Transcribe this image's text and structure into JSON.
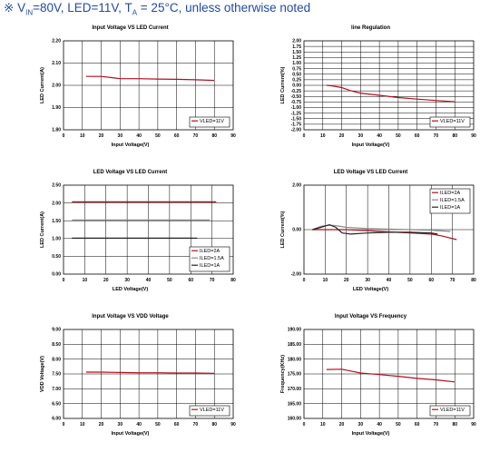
{
  "header": {
    "symbol": "※",
    "v_prefix": "V",
    "v_sub": "IN",
    "v_rest": "=80V, LED=11V, T",
    "t_sub": "A",
    "t_rest": " = 25°C, unless otherwise noted"
  },
  "chart_data": [
    {
      "type": "line",
      "title": "Input Voltage VS LED Current",
      "xlabel": "Input Voltage(V)",
      "ylabel": "LED Current(A)",
      "xlim": [
        0,
        90
      ],
      "ylim": [
        1.8,
        2.2
      ],
      "xticks": [
        0,
        10,
        20,
        30,
        40,
        50,
        60,
        70,
        80,
        90
      ],
      "yticks": [
        1.8,
        1.9,
        2.0,
        2.1,
        2.2
      ],
      "ydecimals": 2,
      "grid": true,
      "legend": "bottom-right",
      "series": [
        {
          "name": "VLED=11V",
          "color": "#b01020",
          "style": "solid",
          "x": [
            12,
            15,
            20,
            25,
            30,
            40,
            50,
            60,
            70,
            80
          ],
          "y": [
            2.04,
            2.04,
            2.04,
            2.035,
            2.03,
            2.03,
            2.028,
            2.027,
            2.025,
            2.022
          ]
        }
      ]
    },
    {
      "type": "line",
      "title": "line Regulation",
      "xlabel": "Input Voltage(V)",
      "ylabel": "LED Current(%)",
      "xlim": [
        0,
        90
      ],
      "ylim": [
        -2.0,
        2.0
      ],
      "xticks": [
        0,
        10,
        20,
        30,
        40,
        50,
        60,
        70,
        80,
        90
      ],
      "yticks": [
        -2.0,
        -1.75,
        -1.5,
        -1.25,
        -1.0,
        -0.75,
        -0.5,
        -0.25,
        0.0,
        0.25,
        0.5,
        0.75,
        1.0,
        1.25,
        1.5,
        1.75,
        2.0
      ],
      "ydecimals": 2,
      "grid": true,
      "legend": "bottom-right",
      "series": [
        {
          "name": "VLED=11V",
          "color": "#b01020",
          "style": "solid",
          "x": [
            12,
            15,
            20,
            25,
            30,
            40,
            50,
            60,
            70,
            80
          ],
          "y": [
            0.0,
            -0.03,
            -0.1,
            -0.25,
            -0.35,
            -0.45,
            -0.55,
            -0.62,
            -0.68,
            -0.74
          ]
        }
      ]
    },
    {
      "type": "line",
      "title": "LED Voltage VS LED Current",
      "xlabel": "LED Voltage(V)",
      "ylabel": "LED Current(A)",
      "xlim": [
        0,
        80
      ],
      "ylim": [
        0.0,
        2.5
      ],
      "xticks": [
        0,
        10,
        20,
        30,
        40,
        50,
        60,
        70,
        80
      ],
      "yticks": [
        0.0,
        0.5,
        1.0,
        1.5,
        2.0,
        2.5
      ],
      "ydecimals": 2,
      "grid": true,
      "legend": "bottom-right",
      "series": [
        {
          "name": "ILED=2A",
          "color": "#b01020",
          "style": "solid",
          "x": [
            4,
            10,
            20,
            30,
            40,
            50,
            60,
            72
          ],
          "y": [
            2.03,
            2.03,
            2.03,
            2.03,
            2.03,
            2.03,
            2.03,
            2.03
          ]
        },
        {
          "name": "ILED=1.5A",
          "color": "#888888",
          "style": "solid",
          "x": [
            4,
            10,
            20,
            30,
            40,
            50,
            60,
            69
          ],
          "y": [
            1.52,
            1.52,
            1.52,
            1.52,
            1.52,
            1.52,
            1.52,
            1.52
          ]
        },
        {
          "name": "ILED=1A",
          "color": "#222222",
          "style": "solid",
          "x": [
            4,
            10,
            20,
            30,
            40,
            50,
            60,
            63
          ],
          "y": [
            1.01,
            1.01,
            1.01,
            1.01,
            1.01,
            1.01,
            1.01,
            1.01
          ]
        }
      ]
    },
    {
      "type": "line",
      "title": "LED Voltage VS LED Current",
      "xlabel": "LED Voltage(V)",
      "ylabel": "LED Current(%)",
      "xlim": [
        0,
        80
      ],
      "ylim": [
        -2.0,
        2.0
      ],
      "xticks": [
        0,
        10,
        20,
        30,
        40,
        50,
        60,
        70,
        80
      ],
      "yticks": [
        -2.0,
        0.0,
        2.0
      ],
      "ydecimals": 2,
      "grid": true,
      "legend": "top-right",
      "series": [
        {
          "name": "ILED=2A",
          "color": "#b01020",
          "style": "solid",
          "x": [
            4,
            10,
            15,
            20,
            30,
            40,
            50,
            60,
            65,
            72
          ],
          "y": [
            0.0,
            0.0,
            0.0,
            0.0,
            -0.05,
            -0.1,
            -0.15,
            -0.2,
            -0.28,
            -0.45
          ]
        },
        {
          "name": "ILED=1.5A",
          "color": "#888888",
          "style": "solid",
          "x": [
            4,
            8,
            12,
            15,
            20,
            30,
            40,
            50,
            60,
            69
          ],
          "y": [
            0.0,
            0.15,
            0.2,
            0.18,
            0.1,
            0.05,
            0.02,
            0.0,
            -0.03,
            -0.08
          ]
        },
        {
          "name": "ILED=1A",
          "color": "#222222",
          "style": "solid",
          "x": [
            4,
            8,
            12,
            15,
            18,
            22,
            30,
            40,
            50,
            60,
            63
          ],
          "y": [
            0.0,
            0.1,
            0.22,
            0.1,
            -0.15,
            -0.2,
            -0.15,
            -0.12,
            -0.12,
            -0.15,
            -0.2
          ]
        }
      ]
    },
    {
      "type": "line",
      "title": "Input Voltage VS VDD Voltage",
      "xlabel": "Input Voltage(V)",
      "ylabel": "VDD Voltage(V)",
      "xlim": [
        0,
        90
      ],
      "ylim": [
        6.0,
        9.0
      ],
      "xticks": [
        0,
        10,
        20,
        30,
        40,
        50,
        60,
        70,
        80,
        90
      ],
      "yticks": [
        6.0,
        6.5,
        7.0,
        7.5,
        8.0,
        8.5,
        9.0
      ],
      "ydecimals": 2,
      "grid": true,
      "legend": "bottom-right",
      "series": [
        {
          "name": "VLED=11V",
          "color": "#b01020",
          "style": "solid",
          "x": [
            12,
            20,
            30,
            40,
            50,
            60,
            70,
            80
          ],
          "y": [
            7.56,
            7.56,
            7.55,
            7.54,
            7.54,
            7.53,
            7.53,
            7.52
          ]
        }
      ]
    },
    {
      "type": "line",
      "title": "Input Voltage VS Frequency",
      "xlabel": "Input Voltage(V)",
      "ylabel": "Frequency(KHz)",
      "xlim": [
        0,
        90
      ],
      "ylim": [
        160.0,
        190.0
      ],
      "xticks": [
        0,
        10,
        20,
        30,
        40,
        50,
        60,
        70,
        80,
        90
      ],
      "yticks": [
        160.0,
        165.0,
        170.0,
        175.0,
        180.0,
        185.0,
        190.0
      ],
      "ydecimals": 2,
      "grid": true,
      "legend": "bottom-right",
      "series": [
        {
          "name": "VLED=11V",
          "color": "#b01020",
          "style": "solid",
          "x": [
            12,
            20,
            30,
            40,
            50,
            60,
            70,
            80
          ],
          "y": [
            176.5,
            176.6,
            175.3,
            174.8,
            174.2,
            173.5,
            173.0,
            172.3
          ]
        }
      ]
    }
  ]
}
